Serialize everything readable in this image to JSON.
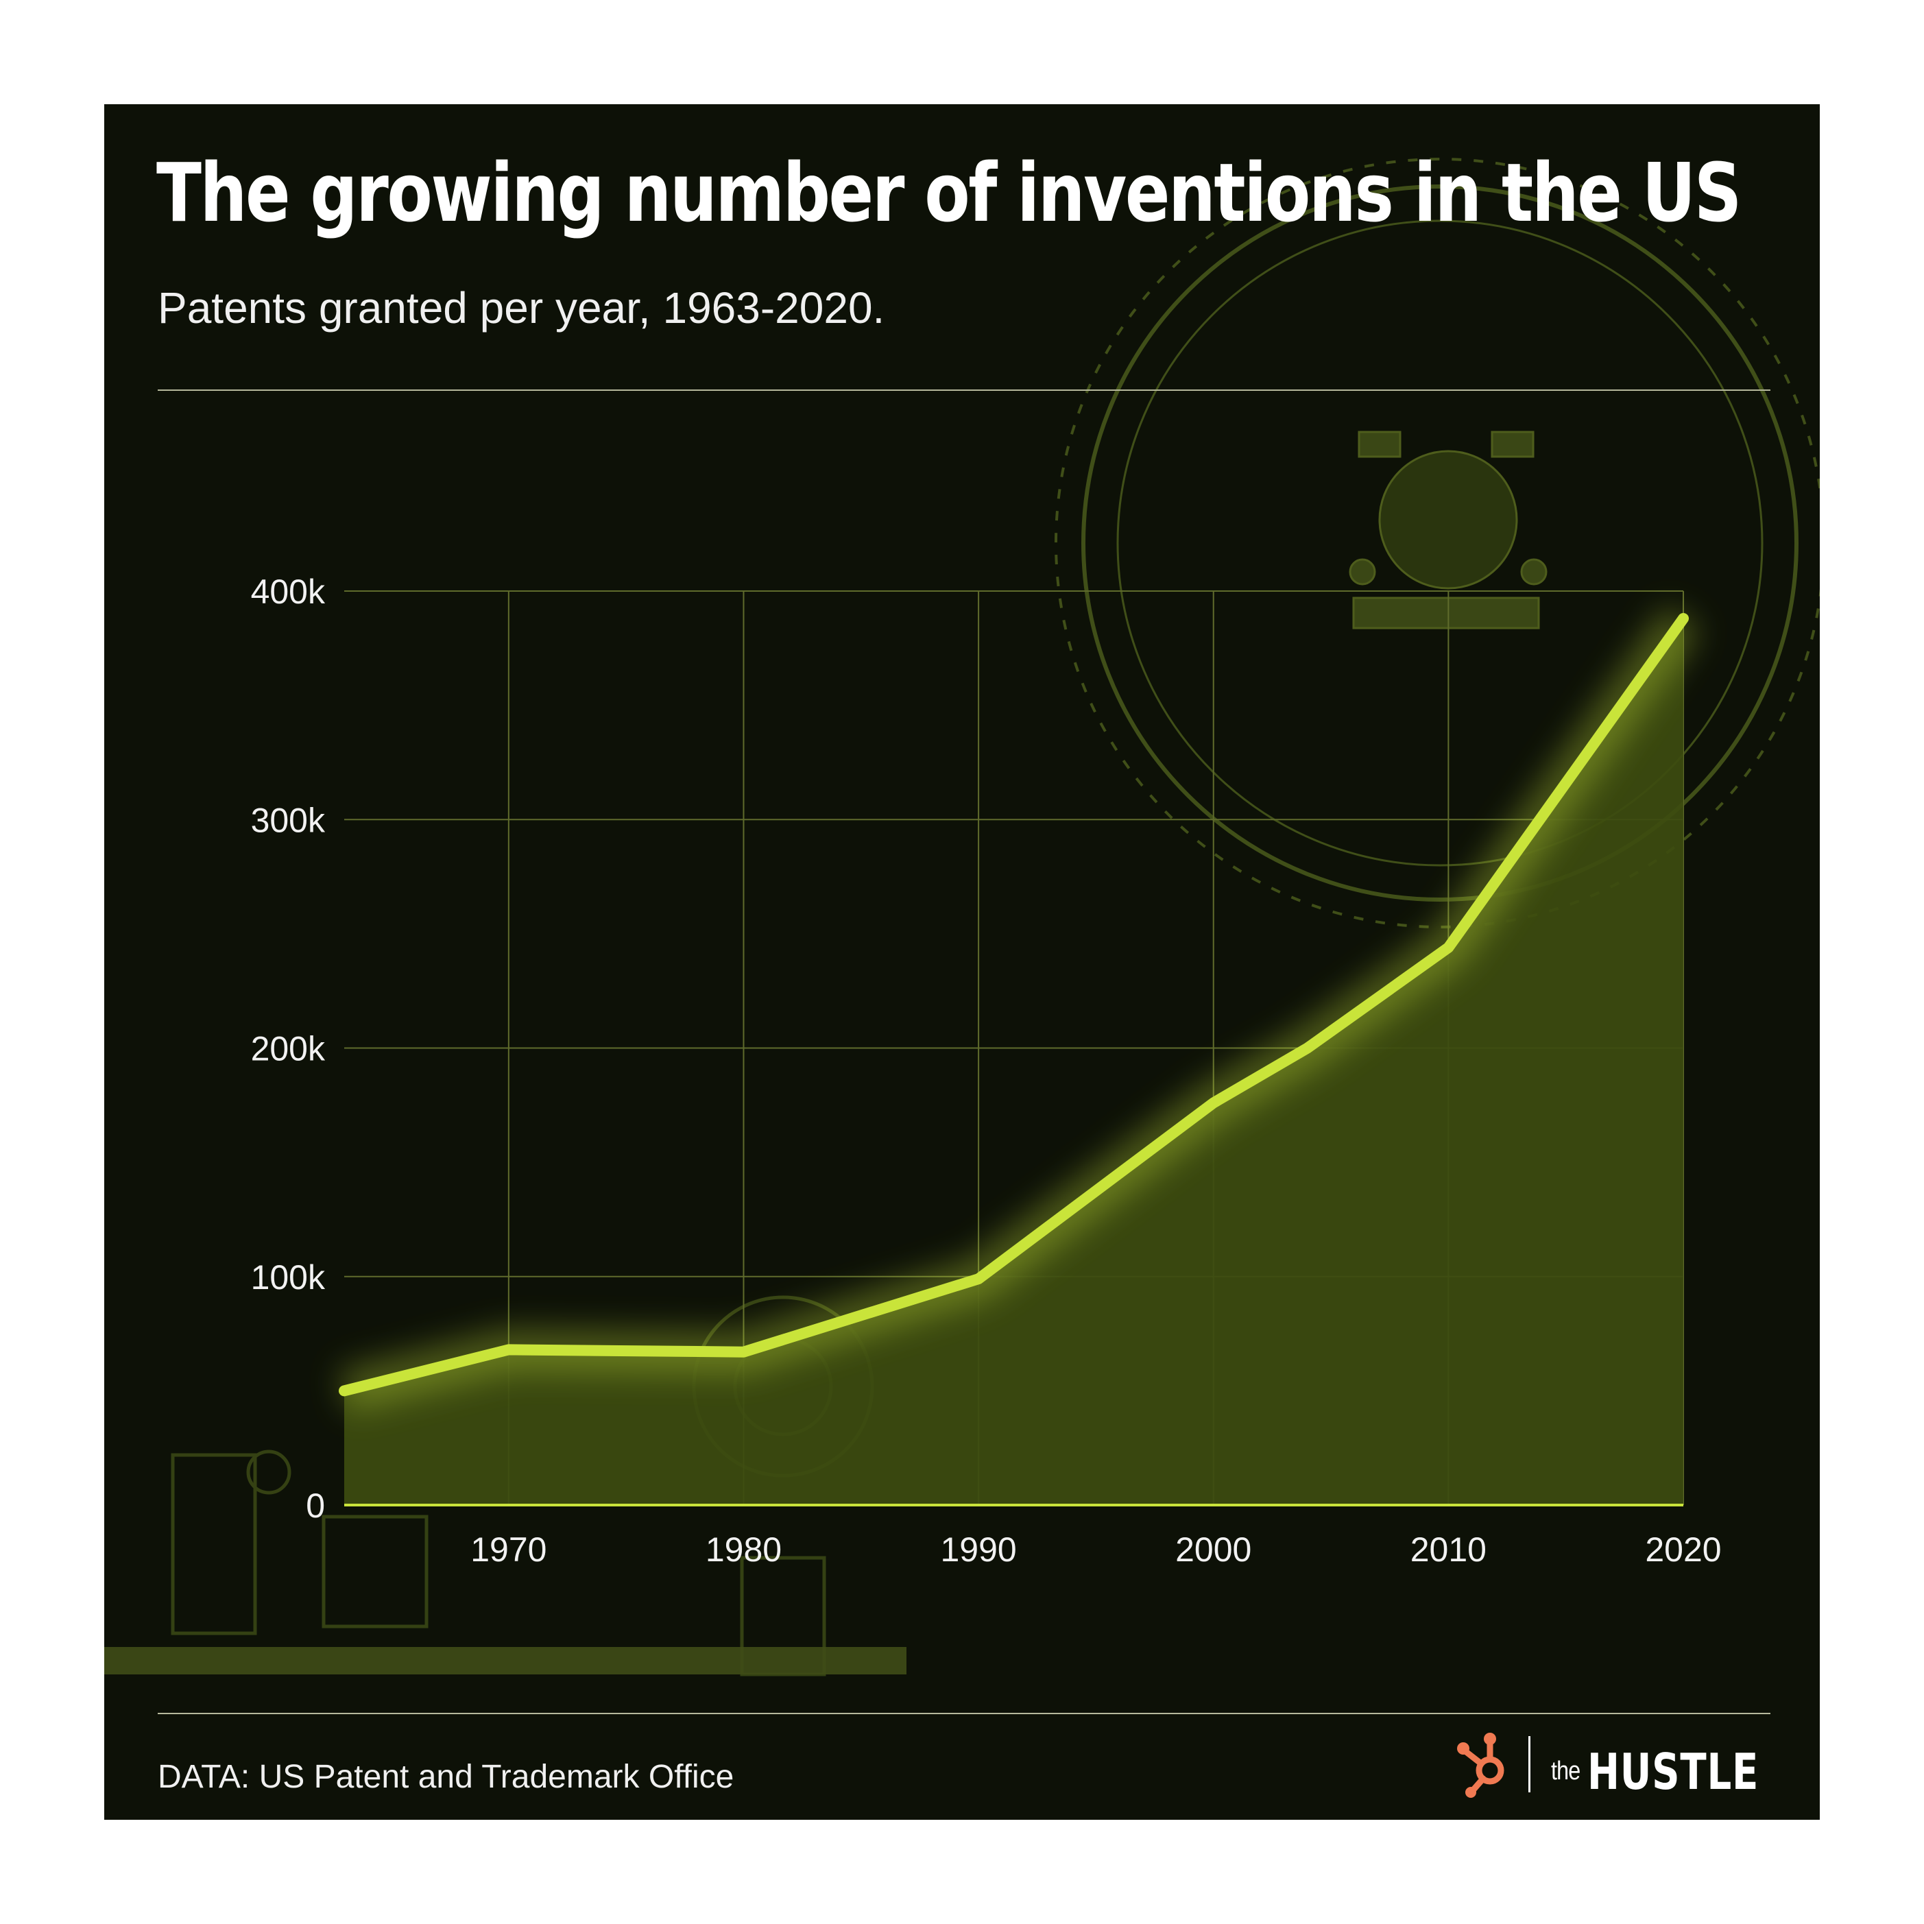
{
  "title": "The growing number of inventions in the US",
  "subtitle": "Patents granted per year, 1963-2020.",
  "source": "DATA: US Patent and Trademark Office",
  "brand": {
    "prefix": "the",
    "name": "HUSTLE",
    "logo_icon": "hubspot-sprocket-icon"
  },
  "colors": {
    "background": "#0d1107",
    "accent": "#c9e43a",
    "area_fill": "#3d4c10",
    "grid": "#5f6b2c",
    "text": "#ffffff",
    "logo": "#f07a52"
  },
  "chart_data": {
    "type": "area",
    "title": "The growing number of inventions in the US",
    "subtitle": "Patents granted per year, 1963-2020.",
    "xlabel": "",
    "ylabel": "",
    "x": [
      1963,
      1970,
      1980,
      1990,
      2000,
      2004,
      2010,
      2020
    ],
    "series": [
      {
        "name": "Patents granted",
        "values": [
          50000,
          68000,
          67000,
          99000,
          176000,
          200000,
          244000,
          388000
        ]
      }
    ],
    "xlim": [
      1963,
      2020
    ],
    "ylim": [
      0,
      400000
    ],
    "x_ticks": [
      1970,
      1980,
      1990,
      2000,
      2010,
      2020
    ],
    "x_tick_labels": [
      "1970",
      "1980",
      "1990",
      "2000",
      "2010",
      "2020"
    ],
    "y_ticks": [
      0,
      100000,
      200000,
      300000,
      400000
    ],
    "y_tick_labels": [
      "0",
      "100k",
      "200k",
      "300k",
      "400k"
    ],
    "grid": true,
    "legend": "none"
  }
}
